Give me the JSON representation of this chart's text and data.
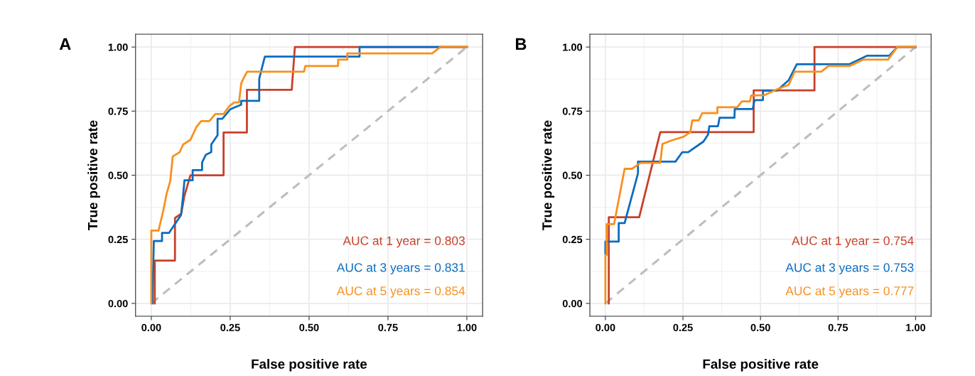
{
  "chart_data": [
    {
      "type": "line",
      "title": "A",
      "xlabel": "False positive rate",
      "ylabel": "True positive rate",
      "xlim": [
        -0.05,
        1.05
      ],
      "ylim": [
        -0.05,
        1.05
      ],
      "xticks": [
        {
          "value": 0,
          "label": "0.00"
        },
        {
          "value": 0.25,
          "label": "0.25"
        },
        {
          "value": 0.5,
          "label": "0.50"
        },
        {
          "value": 0.75,
          "label": "0.75"
        },
        {
          "value": 1,
          "label": "1.00"
        }
      ],
      "yticks": [
        {
          "value": 0,
          "label": "0.00"
        },
        {
          "value": 0.25,
          "label": "0.25"
        },
        {
          "value": 0.5,
          "label": "0.50"
        },
        {
          "value": 0.75,
          "label": "0.75"
        },
        {
          "value": 1,
          "label": "1.00"
        }
      ],
      "grid": true,
      "series": [
        {
          "color": "#bdbdbd",
          "line_style": "dashed",
          "x": [
            0,
            1
          ],
          "values": [
            0,
            1
          ]
        },
        {
          "color": "#c8402a",
          "x": [
            0.011,
            0.011,
            0.075,
            0.075,
            0.095,
            0.105,
            0.124,
            0.229,
            0.229,
            0.303,
            0.303,
            0.445,
            0.455,
            1
          ],
          "values": [
            0,
            0.167,
            0.167,
            0.333,
            0.35,
            0.42,
            0.5,
            0.5,
            0.667,
            0.667,
            0.833,
            0.833,
            1,
            1
          ]
        },
        {
          "color": "#0a6cc0",
          "x": [
            0.004,
            0.004,
            0.008,
            0.034,
            0.034,
            0.056,
            0.094,
            0.1,
            0.105,
            0.131,
            0.131,
            0.161,
            0.161,
            0.173,
            0.19,
            0.19,
            0.21,
            0.21,
            0.225,
            0.25,
            0.285,
            0.285,
            0.342,
            0.342,
            0.353,
            0.36,
            0.66,
            0.66,
            1
          ],
          "values": [
            0,
            0.03,
            0.243,
            0.243,
            0.275,
            0.275,
            0.344,
            0.41,
            0.48,
            0.48,
            0.52,
            0.52,
            0.55,
            0.58,
            0.59,
            0.62,
            0.656,
            0.72,
            0.72,
            0.757,
            0.775,
            0.79,
            0.79,
            0.876,
            0.93,
            0.963,
            0.963,
            1,
            1
          ]
        },
        {
          "color": "#f7901e",
          "x": [
            0,
            0,
            0.023,
            0.038,
            0.049,
            0.06,
            0.068,
            0.09,
            0.101,
            0.124,
            0.143,
            0.158,
            0.184,
            0.203,
            0.229,
            0.248,
            0.263,
            0.278,
            0.285,
            0.293,
            0.304,
            0.484,
            0.488,
            0.592,
            0.592,
            0.621,
            0.621,
            0.89,
            0.916,
            1
          ],
          "values": [
            0,
            0.284,
            0.284,
            0.362,
            0.43,
            0.477,
            0.573,
            0.59,
            0.62,
            0.638,
            0.688,
            0.711,
            0.711,
            0.739,
            0.739,
            0.771,
            0.784,
            0.784,
            0.858,
            0.88,
            0.904,
            0.904,
            0.926,
            0.926,
            0.951,
            0.951,
            0.975,
            0.975,
            1,
            1
          ]
        }
      ],
      "annotations": [
        "AUC at 1 year = 0.803",
        "AUC at 3 years = 0.831",
        "AUC at 5 years = 0.854"
      ]
    },
    {
      "type": "line",
      "title": "B",
      "xlabel": "False positive rate",
      "ylabel": "True positive rate",
      "xlim": [
        -0.05,
        1.05
      ],
      "ylim": [
        -0.05,
        1.05
      ],
      "xticks": [
        {
          "value": 0,
          "label": "0.00"
        },
        {
          "value": 0.25,
          "label": "0.25"
        },
        {
          "value": 0.5,
          "label": "0.50"
        },
        {
          "value": 0.75,
          "label": "0.75"
        },
        {
          "value": 1,
          "label": "1.00"
        }
      ],
      "yticks": [
        {
          "value": 0,
          "label": "0.00"
        },
        {
          "value": 0.25,
          "label": "0.25"
        },
        {
          "value": 0.5,
          "label": "0.50"
        },
        {
          "value": 0.75,
          "label": "0.75"
        },
        {
          "value": 1,
          "label": "1.00"
        }
      ],
      "grid": true,
      "series": [
        {
          "color": "#bdbdbd",
          "line_style": "dashed",
          "x": [
            0,
            1
          ],
          "values": [
            0,
            1
          ]
        },
        {
          "color": "#c8402a",
          "x": [
            0.011,
            0.011,
            0.109,
            0.177,
            0.478,
            0.478,
            0.674,
            0.674,
            1
          ],
          "values": [
            0,
            0.336,
            0.336,
            0.668,
            0.668,
            0.831,
            0.831,
            1,
            1
          ]
        },
        {
          "color": "#0a6cc0",
          "x": [
            0,
            0,
            0.043,
            0.043,
            0.062,
            0.105,
            0.105,
            0.226,
            0.248,
            0.267,
            0.305,
            0.316,
            0.331,
            0.335,
            0.363,
            0.368,
            0.416,
            0.417,
            0.475,
            0.481,
            0.508,
            0.508,
            0.553,
            0.591,
            0.617,
            0.719,
            0.787,
            0.843,
            0.915,
            0.941,
            1
          ],
          "values": [
            0.194,
            0.241,
            0.241,
            0.313,
            0.313,
            0.507,
            0.553,
            0.553,
            0.59,
            0.59,
            0.622,
            0.631,
            0.659,
            0.691,
            0.691,
            0.724,
            0.724,
            0.758,
            0.758,
            0.793,
            0.793,
            0.83,
            0.83,
            0.871,
            0.933,
            0.933,
            0.933,
            0.966,
            0.966,
            1,
            1
          ]
        },
        {
          "color": "#f7901e",
          "x": [
            0,
            0,
            0.004,
            0.004,
            0.028,
            0.062,
            0.086,
            0.113,
            0.177,
            0.184,
            0.214,
            0.252,
            0.274,
            0.28,
            0.301,
            0.312,
            0.361,
            0.361,
            0.425,
            0.44,
            0.466,
            0.47,
            0.512,
            0.553,
            0.591,
            0.61,
            0.696,
            0.719,
            0.787,
            0.832,
            0.911,
            0.941,
            1
          ],
          "values": [
            0,
            0.189,
            0.189,
            0.309,
            0.309,
            0.525,
            0.525,
            0.548,
            0.548,
            0.622,
            0.636,
            0.65,
            0.668,
            0.714,
            0.714,
            0.742,
            0.742,
            0.765,
            0.765,
            0.788,
            0.788,
            0.811,
            0.812,
            0.835,
            0.853,
            0.904,
            0.904,
            0.926,
            0.926,
            0.951,
            0.951,
            1,
            1
          ]
        }
      ],
      "annotations": [
        "AUC at 1 year = 0.754",
        "AUC at 3 years = 0.753",
        "AUC at 5 years = 0.777"
      ]
    }
  ]
}
